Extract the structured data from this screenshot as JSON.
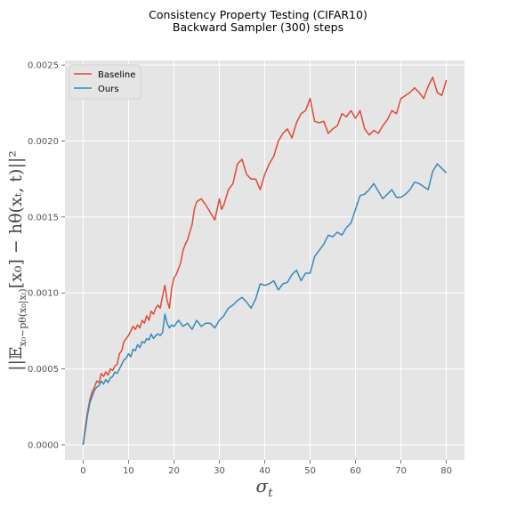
{
  "chart_data": {
    "type": "line",
    "title_line1": "Consistency Property Testing (CIFAR10)",
    "title_line2": "Backward Sampler (300) steps",
    "xlabel": "σ_t",
    "ylabel": "||𝔼_{x0∼pθ(x0|xt)}[x0] − hθ(xt, t)||²",
    "xlim": [
      -4,
      84
    ],
    "ylim": [
      -0.0001,
      0.00253
    ],
    "xticks": [
      0,
      10,
      20,
      30,
      40,
      50,
      60,
      70,
      80
    ],
    "xtick_labels": [
      "0",
      "10",
      "20",
      "30",
      "40",
      "50",
      "60",
      "70",
      "80"
    ],
    "yticks": [
      0,
      0.0005,
      0.001,
      0.0015,
      0.002,
      0.0025
    ],
    "ytick_labels": [
      "0.0000",
      "0.0005",
      "0.0010",
      "0.0015",
      "0.0020",
      "0.0025"
    ],
    "grid": true,
    "legend_position": "upper-left",
    "background": "#e5e5e5",
    "series": [
      {
        "name": "Baseline",
        "color": "#e24a33",
        "x": [
          0,
          0.5,
          1,
          1.5,
          2,
          2.5,
          3,
          3.5,
          4,
          4.5,
          5,
          5.5,
          6,
          6.5,
          7,
          7.5,
          8,
          8.5,
          9,
          9.5,
          10,
          10.5,
          11,
          11.5,
          12,
          12.5,
          13,
          13.5,
          14,
          14.5,
          15,
          15.5,
          16,
          16.5,
          17,
          17.5,
          18,
          18.5,
          19,
          19.5,
          20,
          20.5,
          21,
          21.5,
          22,
          22.5,
          23,
          23.5,
          24,
          24.5,
          25,
          26,
          27,
          28,
          29,
          30,
          30.5,
          31,
          32,
          33,
          34,
          35,
          36,
          37,
          38,
          39,
          40,
          41,
          42,
          43,
          44,
          45,
          46,
          47,
          48,
          49,
          50,
          51,
          52,
          53,
          54,
          55,
          56,
          57,
          58,
          59,
          60,
          61,
          62,
          63,
          64,
          65,
          66,
          67,
          68,
          69,
          70,
          71,
          72,
          73,
          74,
          75,
          76,
          77,
          78,
          79,
          80
        ],
        "values": [
          0.0,
          0.00012,
          0.00022,
          0.0003,
          0.00035,
          0.00038,
          0.00042,
          0.00041,
          0.00047,
          0.00045,
          0.00048,
          0.00046,
          0.0005,
          0.00049,
          0.00052,
          0.00053,
          0.0006,
          0.00062,
          0.00068,
          0.0007,
          0.00072,
          0.00075,
          0.00078,
          0.00076,
          0.00079,
          0.00077,
          0.00082,
          0.0008,
          0.00085,
          0.00082,
          0.00088,
          0.00086,
          0.0009,
          0.00092,
          0.0009,
          0.00098,
          0.00105,
          0.00095,
          0.0009,
          0.00103,
          0.0011,
          0.00112,
          0.00116,
          0.0012,
          0.00128,
          0.00132,
          0.00135,
          0.0014,
          0.00145,
          0.00155,
          0.0016,
          0.00162,
          0.00158,
          0.00153,
          0.00148,
          0.00162,
          0.00155,
          0.00158,
          0.00168,
          0.00172,
          0.00185,
          0.00188,
          0.00178,
          0.00175,
          0.00175,
          0.00168,
          0.00178,
          0.00185,
          0.0019,
          0.002,
          0.00205,
          0.00208,
          0.00202,
          0.00212,
          0.00218,
          0.0022,
          0.00228,
          0.00213,
          0.00212,
          0.00213,
          0.00205,
          0.00208,
          0.0021,
          0.00218,
          0.00216,
          0.0022,
          0.00215,
          0.0022,
          0.00208,
          0.00204,
          0.00207,
          0.00205,
          0.0021,
          0.00214,
          0.0022,
          0.00218,
          0.00228,
          0.0023,
          0.00232,
          0.00235,
          0.00232,
          0.00228,
          0.00236,
          0.00242,
          0.00232,
          0.0023,
          0.0024
        ]
      },
      {
        "name": "Ours",
        "color": "#348abd",
        "x": [
          0,
          0.5,
          1,
          1.5,
          2,
          2.5,
          3,
          3.5,
          4,
          4.5,
          5,
          5.5,
          6,
          6.5,
          7,
          7.5,
          8,
          8.5,
          9,
          9.5,
          10,
          10.5,
          11,
          11.5,
          12,
          12.5,
          13,
          13.5,
          14,
          14.5,
          15,
          15.5,
          16,
          16.5,
          17,
          17.5,
          18,
          18.5,
          19,
          19.5,
          20,
          21,
          22,
          23,
          24,
          25,
          26,
          27,
          28,
          29,
          30,
          31,
          32,
          33,
          34,
          35,
          36,
          37,
          38,
          39,
          40,
          41,
          42,
          43,
          44,
          45,
          46,
          47,
          48,
          49,
          50,
          51,
          52,
          53,
          54,
          55,
          56,
          57,
          58,
          59,
          60,
          61,
          62,
          63,
          64,
          65,
          66,
          67,
          68,
          69,
          70,
          71,
          72,
          73,
          74,
          75,
          76,
          77,
          78,
          79,
          80
        ],
        "values": [
          0.0,
          0.0001,
          0.0002,
          0.00028,
          0.00032,
          0.00036,
          0.00038,
          0.00039,
          0.00042,
          0.0004,
          0.00043,
          0.00041,
          0.00044,
          0.00045,
          0.00048,
          0.00047,
          0.0005,
          0.00053,
          0.00056,
          0.00057,
          0.0006,
          0.00058,
          0.00063,
          0.00062,
          0.00066,
          0.00064,
          0.00068,
          0.00067,
          0.0007,
          0.00069,
          0.00073,
          0.0007,
          0.00072,
          0.00073,
          0.00072,
          0.00074,
          0.00086,
          0.0008,
          0.00077,
          0.00079,
          0.00078,
          0.00082,
          0.00078,
          0.0008,
          0.00076,
          0.00082,
          0.00078,
          0.0008,
          0.0008,
          0.00077,
          0.00082,
          0.00085,
          0.0009,
          0.00092,
          0.00095,
          0.00097,
          0.00094,
          0.0009,
          0.00096,
          0.00106,
          0.00105,
          0.00106,
          0.00108,
          0.00102,
          0.00106,
          0.00107,
          0.00112,
          0.00115,
          0.00108,
          0.00113,
          0.00113,
          0.00124,
          0.00128,
          0.00132,
          0.00138,
          0.00137,
          0.0014,
          0.00138,
          0.00143,
          0.00146,
          0.00155,
          0.00164,
          0.00165,
          0.00168,
          0.00172,
          0.00167,
          0.00162,
          0.00165,
          0.00168,
          0.00163,
          0.00163,
          0.00165,
          0.00168,
          0.00173,
          0.00172,
          0.0017,
          0.00168,
          0.0018,
          0.00185,
          0.00182,
          0.00179
        ]
      }
    ]
  }
}
